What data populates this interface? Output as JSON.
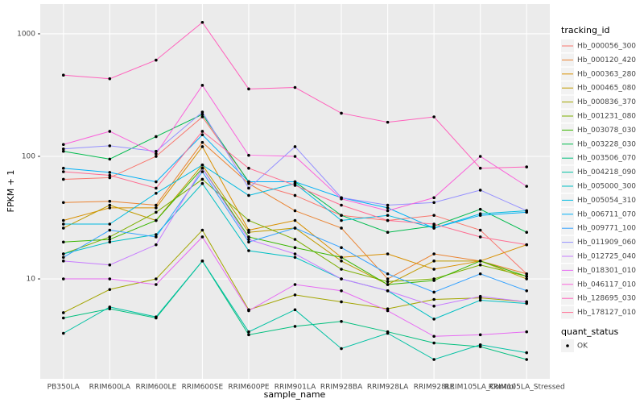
{
  "chart_data": {
    "type": "line",
    "y_scale": "log",
    "grid": true,
    "x_label": "sample_name",
    "y_label": "FPKM + 1",
    "legend_title": "tracking_id",
    "legend_position": "right",
    "status_legend_title": "quant_status",
    "status_legend_entries": [
      "OK"
    ],
    "categories": [
      "PB350LA",
      "RRIM600LA",
      "RRIM600LE",
      "RRIM600SE",
      "RRIM600PE",
      "RRIM901LA",
      "RRIM928BA",
      "RRIM928LA",
      "RRIM928LE",
      "RRIM105LA_Control",
      "RRIM105LA_Stressed"
    ],
    "ylim": [
      1.53,
      1750
    ],
    "yticks": [
      10,
      100,
      1000
    ],
    "series": [
      {
        "name": "Hb_000056_300",
        "color": "#F8766D",
        "values": [
          65,
          67,
          100,
          210,
          62,
          48,
          33,
          30,
          33,
          25,
          11
        ]
      },
      {
        "name": "Hb_000120_420",
        "color": "#EA8331",
        "values": [
          42,
          43,
          40,
          130,
          60,
          36,
          26,
          10,
          16,
          14,
          11
        ]
      },
      {
        "name": "Hb_000363_280",
        "color": "#D89000",
        "values": [
          30,
          38,
          38,
          120,
          25,
          30,
          15,
          16,
          12,
          14,
          19
        ]
      },
      {
        "name": "Hb_000465_080",
        "color": "#C09B00",
        "values": [
          26,
          40,
          30,
          85,
          24,
          26,
          14,
          9,
          14,
          14,
          10
        ]
      },
      {
        "name": "Hb_000836_370",
        "color": "#A3A500",
        "values": [
          5.3,
          8.2,
          10,
          25,
          5.6,
          7.4,
          6.5,
          5.7,
          6.8,
          7,
          6.5
        ]
      },
      {
        "name": "Hb_001231_080",
        "color": "#7CAE00",
        "values": [
          16,
          22,
          35,
          65,
          30,
          21,
          12,
          9.5,
          10,
          13,
          10.5
        ]
      },
      {
        "name": "Hb_003078_030",
        "color": "#39B600",
        "values": [
          20,
          21,
          30,
          80,
          22,
          18,
          15,
          9,
          9.7,
          14,
          10.5
        ]
      },
      {
        "name": "Hb_003228_030",
        "color": "#00BB4E",
        "values": [
          110,
          95,
          145,
          220,
          62,
          62,
          33,
          24,
          27,
          37,
          24
        ]
      },
      {
        "name": "Hb_003506_070",
        "color": "#00BF7D",
        "values": [
          4.8,
          5.7,
          4.8,
          14,
          3.5,
          4.1,
          4.5,
          3.7,
          3.0,
          2.8,
          2.2
        ]
      },
      {
        "name": "Hb_004218_090",
        "color": "#00C1A3",
        "values": [
          3.6,
          5.9,
          4.9,
          14,
          3.7,
          5.6,
          2.7,
          3.6,
          2.2,
          2.9,
          2.5
        ]
      },
      {
        "name": "Hb_005000_300",
        "color": "#00BFC4",
        "values": [
          16,
          20,
          23,
          60,
          17,
          15,
          10,
          8,
          4.7,
          6.7,
          6.3
        ]
      },
      {
        "name": "Hb_005054_310",
        "color": "#00BAE0",
        "values": [
          28,
          28,
          50,
          85,
          48,
          60,
          30,
          33,
          26,
          34,
          36
        ]
      },
      {
        "name": "Hb_006711_070",
        "color": "#00B0F6",
        "values": [
          80,
          74,
          62,
          150,
          62,
          62,
          46,
          38,
          26,
          33,
          35
        ]
      },
      {
        "name": "Hb_009771_100",
        "color": "#35A2FF",
        "values": [
          15,
          25,
          22,
          75,
          20,
          26,
          18,
          11,
          7.8,
          11,
          8
        ]
      },
      {
        "name": "Hb_011909_060",
        "color": "#9590FF",
        "values": [
          115,
          122,
          110,
          230,
          55,
          120,
          46,
          40,
          42,
          53,
          36
        ]
      },
      {
        "name": "Hb_012725_040",
        "color": "#C77CFF",
        "values": [
          14,
          13,
          19,
          80,
          21,
          16,
          10,
          8,
          6,
          7.2,
          6.5
        ]
      },
      {
        "name": "Hb_018301_010",
        "color": "#E76BF3",
        "values": [
          10,
          10,
          9,
          22,
          5.5,
          9,
          8,
          5.5,
          3.4,
          3.5,
          3.7
        ]
      },
      {
        "name": "Hb_046117_010",
        "color": "#FA62DB",
        "values": [
          125,
          160,
          105,
          380,
          102,
          100,
          45,
          36,
          46,
          100,
          57
        ]
      },
      {
        "name": "Hb_128695_030",
        "color": "#FF62BC",
        "values": [
          460,
          430,
          610,
          1240,
          355,
          365,
          225,
          190,
          210,
          80,
          82
        ]
      },
      {
        "name": "Hb_178127_010",
        "color": "#FF6C91",
        "values": [
          75,
          70,
          55,
          160,
          80,
          58,
          40,
          30,
          28,
          22,
          19
        ]
      }
    ]
  }
}
